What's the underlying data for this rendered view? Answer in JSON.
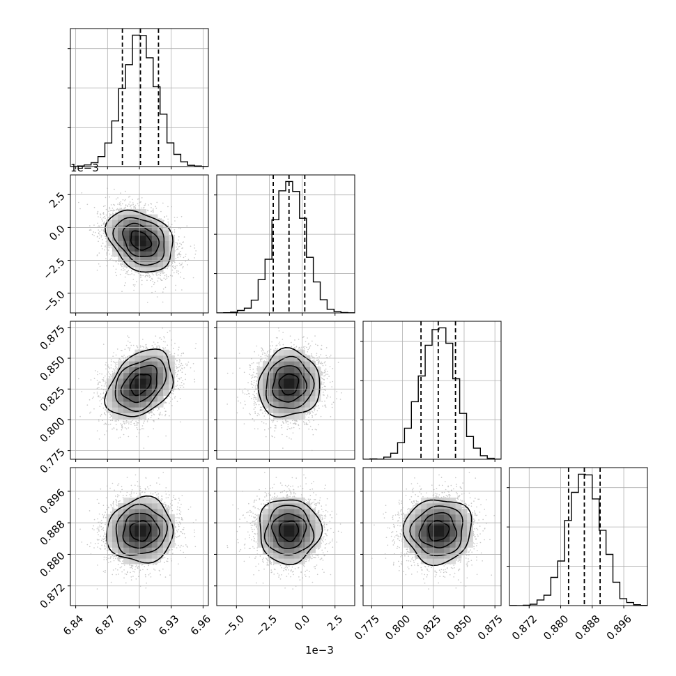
{
  "chart_data": {
    "type": "corner",
    "params": [
      {
        "range": [
          6.835,
          6.965
        ],
        "ticks": [
          6.84,
          6.87,
          6.9,
          6.93,
          6.96
        ],
        "tick_labels": [
          "6.84",
          "6.87",
          "6.90",
          "6.93",
          "6.96"
        ],
        "mean": 6.901,
        "sd": 0.016,
        "q": [
          6.884,
          6.901,
          6.918
        ]
      },
      {
        "range": [
          -6.5,
          4.0
        ],
        "ticks": [
          -5.0,
          -2.5,
          0.0,
          2.5
        ],
        "tick_labels": [
          "−5.0",
          "−2.5",
          "0.0",
          "2.5"
        ],
        "offset": "1e−3",
        "mean": -1.0,
        "sd": 1.2,
        "q": [
          -2.2,
          -1.0,
          0.2
        ]
      },
      {
        "range": [
          0.768,
          0.88
        ],
        "ticks": [
          0.775,
          0.8,
          0.825,
          0.85,
          0.875
        ],
        "tick_labels": [
          "0.775",
          "0.800",
          "0.825",
          "0.850",
          "0.875"
        ],
        "mean": 0.829,
        "sd": 0.014,
        "q": [
          0.815,
          0.829,
          0.843
        ]
      },
      {
        "range": [
          0.867,
          0.902
        ],
        "ticks": [
          0.872,
          0.88,
          0.888,
          0.896
        ],
        "tick_labels": [
          "0.872",
          "0.880",
          "0.888",
          "0.896"
        ],
        "mean": 0.886,
        "sd": 0.0042,
        "q": [
          0.882,
          0.886,
          0.89
        ]
      }
    ],
    "correlations": [
      [
        1,
        -0.3,
        0.35,
        0.05
      ],
      [
        -0.3,
        1,
        0.05,
        0.0
      ],
      [
        0.35,
        0.05,
        1,
        0.05
      ],
      [
        0.05,
        0.0,
        0.05,
        1
      ]
    ],
    "grid": true,
    "contour_levels_sigma": [
      0.5,
      1.0,
      1.5,
      2.0
    ]
  }
}
